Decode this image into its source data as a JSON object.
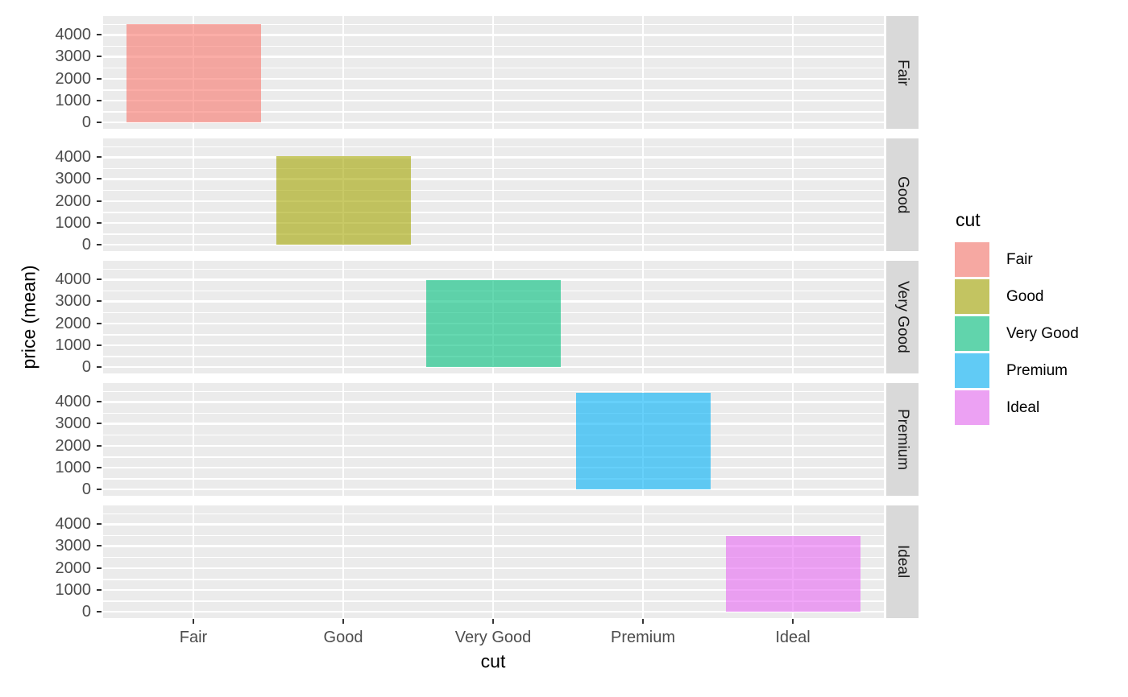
{
  "chart_data": {
    "type": "bar",
    "title": "",
    "xlabel": "cut",
    "ylabel": "price (mean)",
    "categories": [
      "Fair",
      "Good",
      "Very Good",
      "Premium",
      "Ideal"
    ],
    "values": [
      4500,
      4050,
      3980,
      4400,
      3460
    ],
    "facet_rows": [
      "Fair",
      "Good",
      "Very Good",
      "Premium",
      "Ideal"
    ],
    "y_ticks": [
      0,
      1000,
      2000,
      3000,
      4000
    ],
    "y_tick_labels": [
      "0",
      "1000",
      "2000",
      "3000",
      "4000"
    ],
    "y_minor_ticks": [
      500,
      1500,
      2500,
      3500,
      4500
    ],
    "ylim": [
      0,
      4850
    ],
    "grid": true,
    "legend": {
      "title": "cut",
      "position": "right",
      "entries": [
        {
          "label": "Fair",
          "color": "#F8766D"
        },
        {
          "label": "Good",
          "color": "#A3A500"
        },
        {
          "label": "Very Good",
          "color": "#00BF7D"
        },
        {
          "label": "Premium",
          "color": "#00B0F6"
        },
        {
          "label": "Ideal",
          "color": "#E76BF3"
        }
      ]
    },
    "fill_opacity": 0.6,
    "theme": {
      "panel_bg": "#EBEBEB",
      "grid_color": "#FFFFFF",
      "strip_bg": "#D9D9D9",
      "tick_label_color": "#4D4D4D",
      "axis_title_color": "#000000"
    }
  }
}
